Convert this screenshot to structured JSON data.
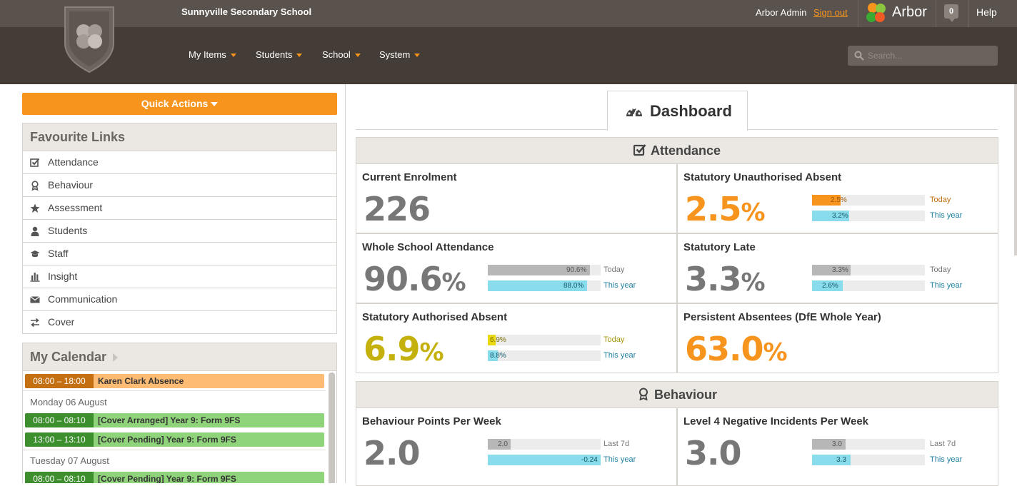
{
  "header": {
    "school_name": "Sunnyville Secondary School",
    "user_name": "Arbor Admin",
    "sign_out": "Sign out",
    "brand": "Arbor",
    "notifications": "0",
    "help": "Help",
    "nav": [
      "My Items",
      "Students",
      "School",
      "System"
    ],
    "search_placeholder": "Search...",
    "accent": "#f7941d"
  },
  "sidebar": {
    "quick_actions": "Quick Actions",
    "favourites_title": "Favourite Links",
    "favourites": [
      {
        "label": "Attendance",
        "icon": "check-square-icon"
      },
      {
        "label": "Behaviour",
        "icon": "award-icon"
      },
      {
        "label": "Assessment",
        "icon": "star-icon"
      },
      {
        "label": "Students",
        "icon": "user-icon"
      },
      {
        "label": "Staff",
        "icon": "graduation-cap-icon"
      },
      {
        "label": "Insight",
        "icon": "bar-chart-icon"
      },
      {
        "label": "Communication",
        "icon": "envelope-icon"
      },
      {
        "label": "Cover",
        "icon": "exchange-icon"
      }
    ],
    "calendar_title": "My Calendar",
    "calendar": {
      "e1_time": "08:00 – 18:00",
      "e1_title": "Karen Clark Absence",
      "d1": "Monday 06 August",
      "e2_time": "08:00 – 08:10",
      "e2_title": "[Cover Arranged] Year 9: Form 9FS",
      "e3_time": "13:00 – 13:10",
      "e3_title": "[Cover Pending] Year 9: Form 9FS",
      "d2": "Tuesday 07 August",
      "e4_time": "08:00 – 08:10",
      "e4_title": "[Cover Pending] Year 9: Form 9FS"
    }
  },
  "dashboard": {
    "tab_title": "Dashboard",
    "attendance_title": "Attendance",
    "behaviour_title": "Behaviour",
    "cards": {
      "enrol_title": "Current Enrolment",
      "enrol_value": "226",
      "unauth_title": "Statutory Unauthorised Absent",
      "unauth_value": "2.5",
      "unauth_today": "2.5%",
      "unauth_today_frac": 0.25,
      "unauth_year": "3.2%",
      "unauth_year_frac": 0.33,
      "whole_title": "Whole School Attendance",
      "whole_value": "90.6",
      "whole_today": "90.6%",
      "whole_today_frac": 0.906,
      "whole_year": "88.0%",
      "whole_year_frac": 0.88,
      "late_title": "Statutory Late",
      "late_value": "3.3",
      "late_today": "3.3%",
      "late_today_frac": 0.34,
      "late_year": "2.6%",
      "late_year_frac": 0.27,
      "auth_title": "Statutory Authorised Absent",
      "auth_value": "6.9",
      "auth_today": "6.9%",
      "auth_today_frac": 0.07,
      "auth_year": "8.8%",
      "auth_year_frac": 0.09,
      "persist_title": "Persistent Absentees (DfE Whole Year)",
      "persist_value": "63.0",
      "bpw_title": "Behaviour Points Per Week",
      "bpw_value": "2.0",
      "bpw_last": "2.0",
      "bpw_last_frac": 0.2,
      "bpw_year": "-0.24",
      "bpw_year_frac": 1.0,
      "neg_title": "Level 4 Negative Incidents Per Week",
      "neg_value": "3.0",
      "neg_last": "3.0",
      "neg_last_frac": 0.3,
      "neg_year": "3.3",
      "neg_year_frac": 0.34
    },
    "legend": {
      "today": "Today",
      "this_year": "This year",
      "last7d": "Last 7d"
    },
    "pct": "%"
  }
}
